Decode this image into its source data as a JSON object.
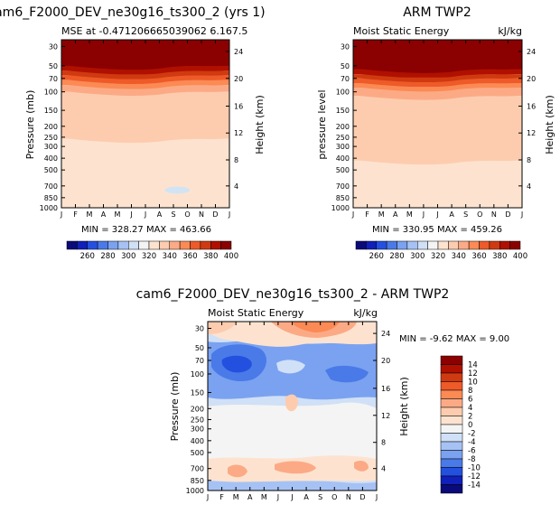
{
  "chart_data": [
    {
      "type": "heatmap",
      "title": "cam6_F2000_DEV_ne30g16_ts300_2 (yrs 1)",
      "subtitle_left": "MSE at -0.471206665039062  6.167.5",
      "subtitle_right": "",
      "ylabel": "Pressure (mb)",
      "ylabel_right": "Height (km)",
      "x_tick_labels": [
        "J",
        "F",
        "M",
        "A",
        "M",
        "J",
        "J",
        "A",
        "S",
        "O",
        "N",
        "D",
        "J"
      ],
      "y_tick_labels": [
        "30",
        "50",
        "70",
        "100",
        "150",
        "200",
        "250",
        "300",
        "400",
        "500",
        "700",
        "850",
        "1000"
      ],
      "height_tick_labels": [
        "24",
        "20",
        "16",
        "12",
        "8",
        "4"
      ],
      "stats": "MIN = 328.27  MAX = 463.66",
      "bands": [
        {
          "top": 0.0,
          "bottom": 0.155,
          "color": "#8b0000"
        },
        {
          "top": 0.155,
          "bottom": 0.185,
          "color": "#b01000"
        },
        {
          "top": 0.185,
          "bottom": 0.212,
          "color": "#d03a10"
        },
        {
          "top": 0.212,
          "bottom": 0.24,
          "color": "#ee5a28"
        },
        {
          "top": 0.24,
          "bottom": 0.27,
          "color": "#fb8a55"
        },
        {
          "top": 0.27,
          "bottom": 0.31,
          "color": "#fcaa85"
        },
        {
          "top": 0.31,
          "bottom": 0.59,
          "color": "#fdccaf"
        },
        {
          "top": 0.59,
          "bottom": 1.0,
          "color": "#fde3cf"
        }
      ],
      "blob": {
        "label": "low-level minimum",
        "color": "#d2e4f4"
      }
    },
    {
      "type": "heatmap",
      "title": "ARM TWP2",
      "subtitle_left": "Moist Static Energy",
      "subtitle_right": "kJ/kg",
      "ylabel": "pressure level",
      "ylabel_right": "Height (km)",
      "x_tick_labels": [
        "J",
        "F",
        "M",
        "A",
        "M",
        "J",
        "J",
        "A",
        "S",
        "O",
        "N",
        "D",
        "J"
      ],
      "y_tick_labels": [
        "30",
        "50",
        "70",
        "100",
        "150",
        "200",
        "250",
        "300",
        "400",
        "500",
        "700",
        "850",
        "1000"
      ],
      "height_tick_labels": [
        "24",
        "20",
        "16",
        "12",
        "8",
        "4"
      ],
      "stats": "MIN = 330.95  MAX = 459.26",
      "bands": [
        {
          "top": 0.0,
          "bottom": 0.175,
          "color": "#8b0000"
        },
        {
          "top": 0.175,
          "bottom": 0.205,
          "color": "#b01000"
        },
        {
          "top": 0.205,
          "bottom": 0.23,
          "color": "#d03a10"
        },
        {
          "top": 0.23,
          "bottom": 0.258,
          "color": "#ee5a28"
        },
        {
          "top": 0.258,
          "bottom": 0.285,
          "color": "#fb8a55"
        },
        {
          "top": 0.285,
          "bottom": 0.335,
          "color": "#fcaa85"
        },
        {
          "top": 0.335,
          "bottom": 0.72,
          "color": "#fdccaf"
        },
        {
          "top": 0.72,
          "bottom": 1.0,
          "color": "#fde3cf"
        }
      ]
    },
    {
      "type": "heatmap",
      "title": "cam6_F2000_DEV_ne30g16_ts300_2 - ARM TWP2",
      "subtitle_left": "Moist Static Energy",
      "subtitle_right": "kJ/kg",
      "ylabel": "Pressure (mb)",
      "ylabel_right": "Height (km)",
      "x_tick_labels": [
        "J",
        "F",
        "M",
        "A",
        "M",
        "J",
        "J",
        "A",
        "S",
        "O",
        "N",
        "D",
        "J"
      ],
      "y_tick_labels": [
        "30",
        "50",
        "70",
        "100",
        "150",
        "200",
        "250",
        "300",
        "400",
        "500",
        "700",
        "850",
        "1000"
      ],
      "height_tick_labels": [
        "24",
        "20",
        "16",
        "12",
        "8",
        "4"
      ],
      "stats": "MIN =   -9.62  MAX =    9.00"
    }
  ],
  "colorbar_top": {
    "labels": [
      "260",
      "280",
      "300",
      "320",
      "340",
      "360",
      "380",
      "400"
    ],
    "colors": [
      "#0a0a7a",
      "#1020b8",
      "#2450e0",
      "#4a7ae8",
      "#7aa2f0",
      "#a6c2f4",
      "#d0e0f6",
      "#f4f4f4",
      "#fde3cf",
      "#fdccaf",
      "#fcaa85",
      "#fb8a55",
      "#ee5a28",
      "#d03a10",
      "#b01000",
      "#8b0000"
    ]
  },
  "colorbar_diff": {
    "labels": [
      "14",
      "12",
      "10",
      "8",
      "6",
      "4",
      "2",
      "0",
      "-2",
      "-4",
      "-6",
      "-8",
      "-10",
      "-12",
      "-14"
    ],
    "colors": [
      "#8b0000",
      "#b01000",
      "#d03a10",
      "#ee5a28",
      "#fb8a55",
      "#fcaa85",
      "#fdccaf",
      "#fde3cf",
      "#f4f4f4",
      "#d0e0f6",
      "#a6c2f4",
      "#7aa2f0",
      "#4a7ae8",
      "#2450e0",
      "#1020b8",
      "#0a0a7a"
    ]
  }
}
